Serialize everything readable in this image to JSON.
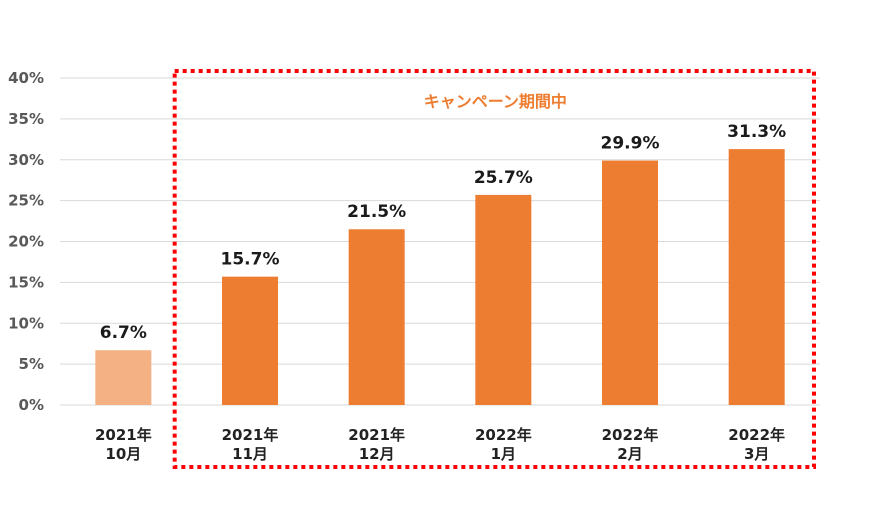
{
  "chart_data": {
    "type": "bar",
    "categories": [
      [
        "2021年",
        "10月"
      ],
      [
        "2021年",
        "11月"
      ],
      [
        "2021年",
        "12月"
      ],
      [
        "2022年",
        "1月"
      ],
      [
        "2022年",
        "2月"
      ],
      [
        "2022年",
        "3月"
      ]
    ],
    "values": [
      6.7,
      15.7,
      21.5,
      25.7,
      29.9,
      31.3
    ],
    "data_labels": [
      "6.7%",
      "15.7%",
      "21.5%",
      "25.7%",
      "29.9%",
      "31.3%"
    ],
    "y_ticks": [
      "0%",
      "5%",
      "10%",
      "15%",
      "20%",
      "25%",
      "30%",
      "35%",
      "40%"
    ],
    "ylim": [
      0,
      40
    ],
    "grid": true,
    "legend": "none",
    "colors": {
      "bar": "#ED7D31",
      "bar_highlighted_light": "#F4B183",
      "annotation_border": "#FF0000",
      "annotation_text": "#ED7D31",
      "grid": "#D9D9D9"
    },
    "bar_colors": [
      "#F4B183",
      "#ED7D31",
      "#ED7D31",
      "#ED7D31",
      "#ED7D31",
      "#ED7D31"
    ],
    "annotation": {
      "text": "キャンペーン期間中",
      "covers_categories_from": 1,
      "covers_categories_to": 5,
      "style": "dotted-red-box"
    }
  }
}
